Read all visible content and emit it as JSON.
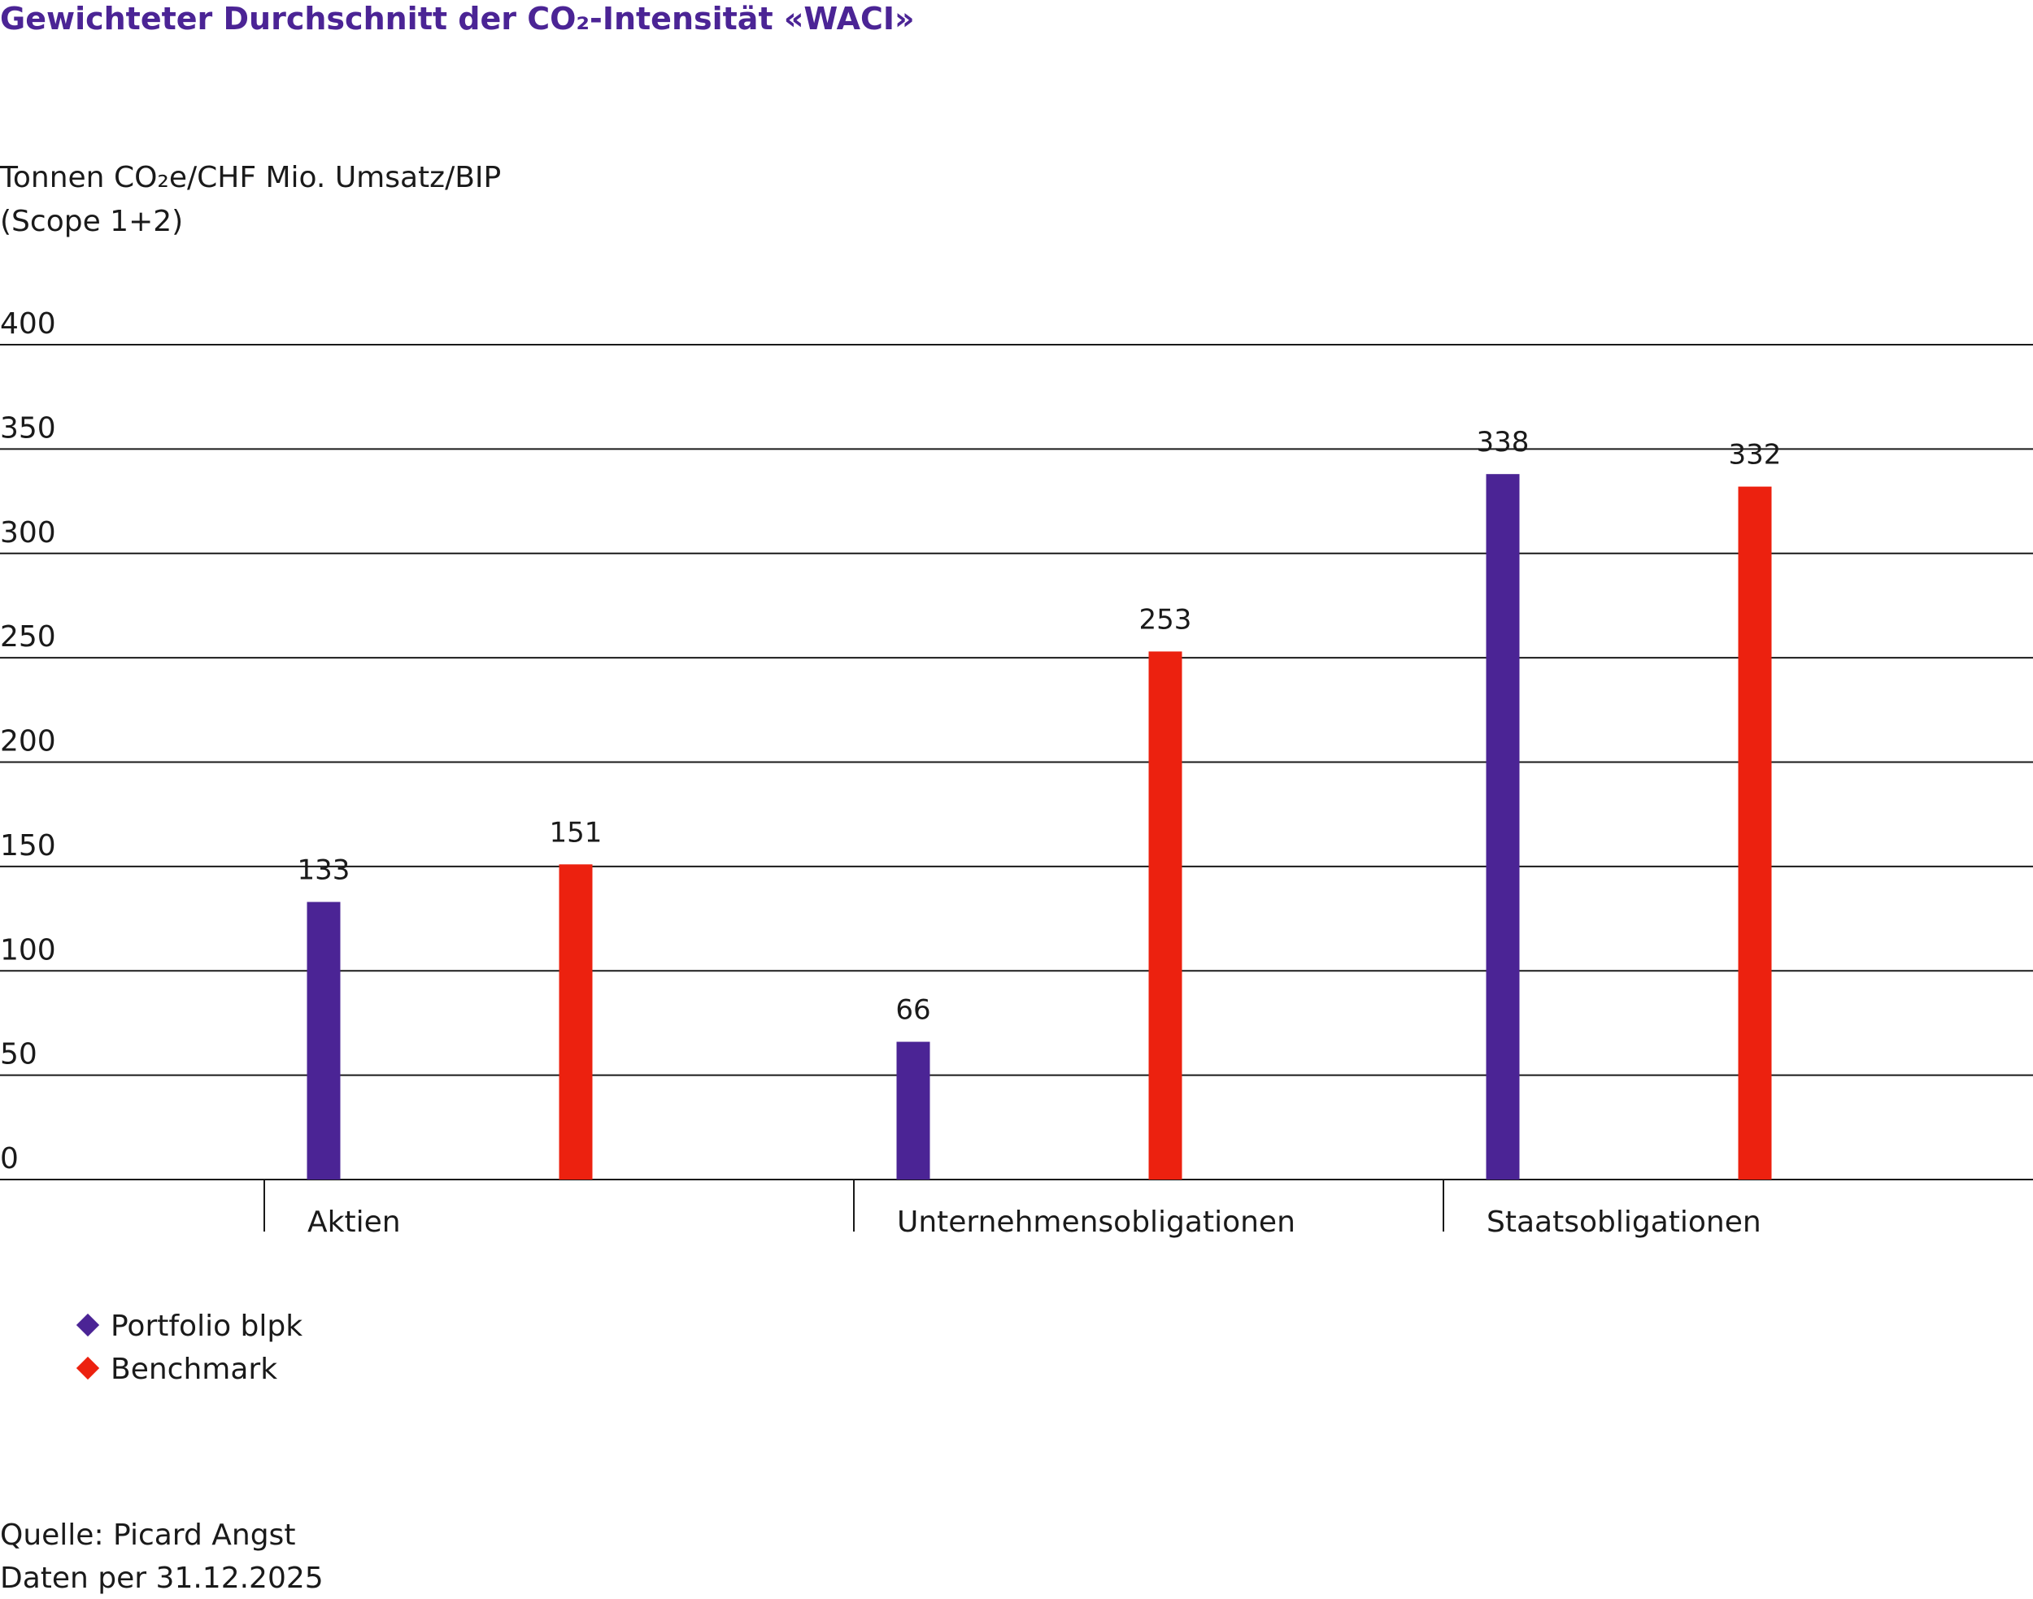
{
  "chart_data": {
    "type": "bar",
    "title": "Gewichteter Durchschnitt der CO₂-Intensität «WACI»",
    "ylabel": [
      "Tonnen CO₂e/CHF Mio. Umsatz/BIP",
      "(Scope 1+2)"
    ],
    "categories": [
      "Aktien",
      "Unternehmensobligationen",
      "Staatsobligationen"
    ],
    "series": [
      {
        "name": "Portfolio blpk",
        "color": "#4b2495",
        "values": [
          133,
          66,
          338
        ]
      },
      {
        "name": "Benchmark",
        "color": "#ec210f",
        "values": [
          151,
          253,
          332
        ]
      }
    ],
    "ylim": [
      0,
      400
    ],
    "yticks": [
      0,
      50,
      100,
      150,
      200,
      250,
      300,
      350,
      400
    ],
    "grid": true,
    "source": "Quelle: Picard Angst",
    "note": "Daten per 31.12.2025"
  }
}
